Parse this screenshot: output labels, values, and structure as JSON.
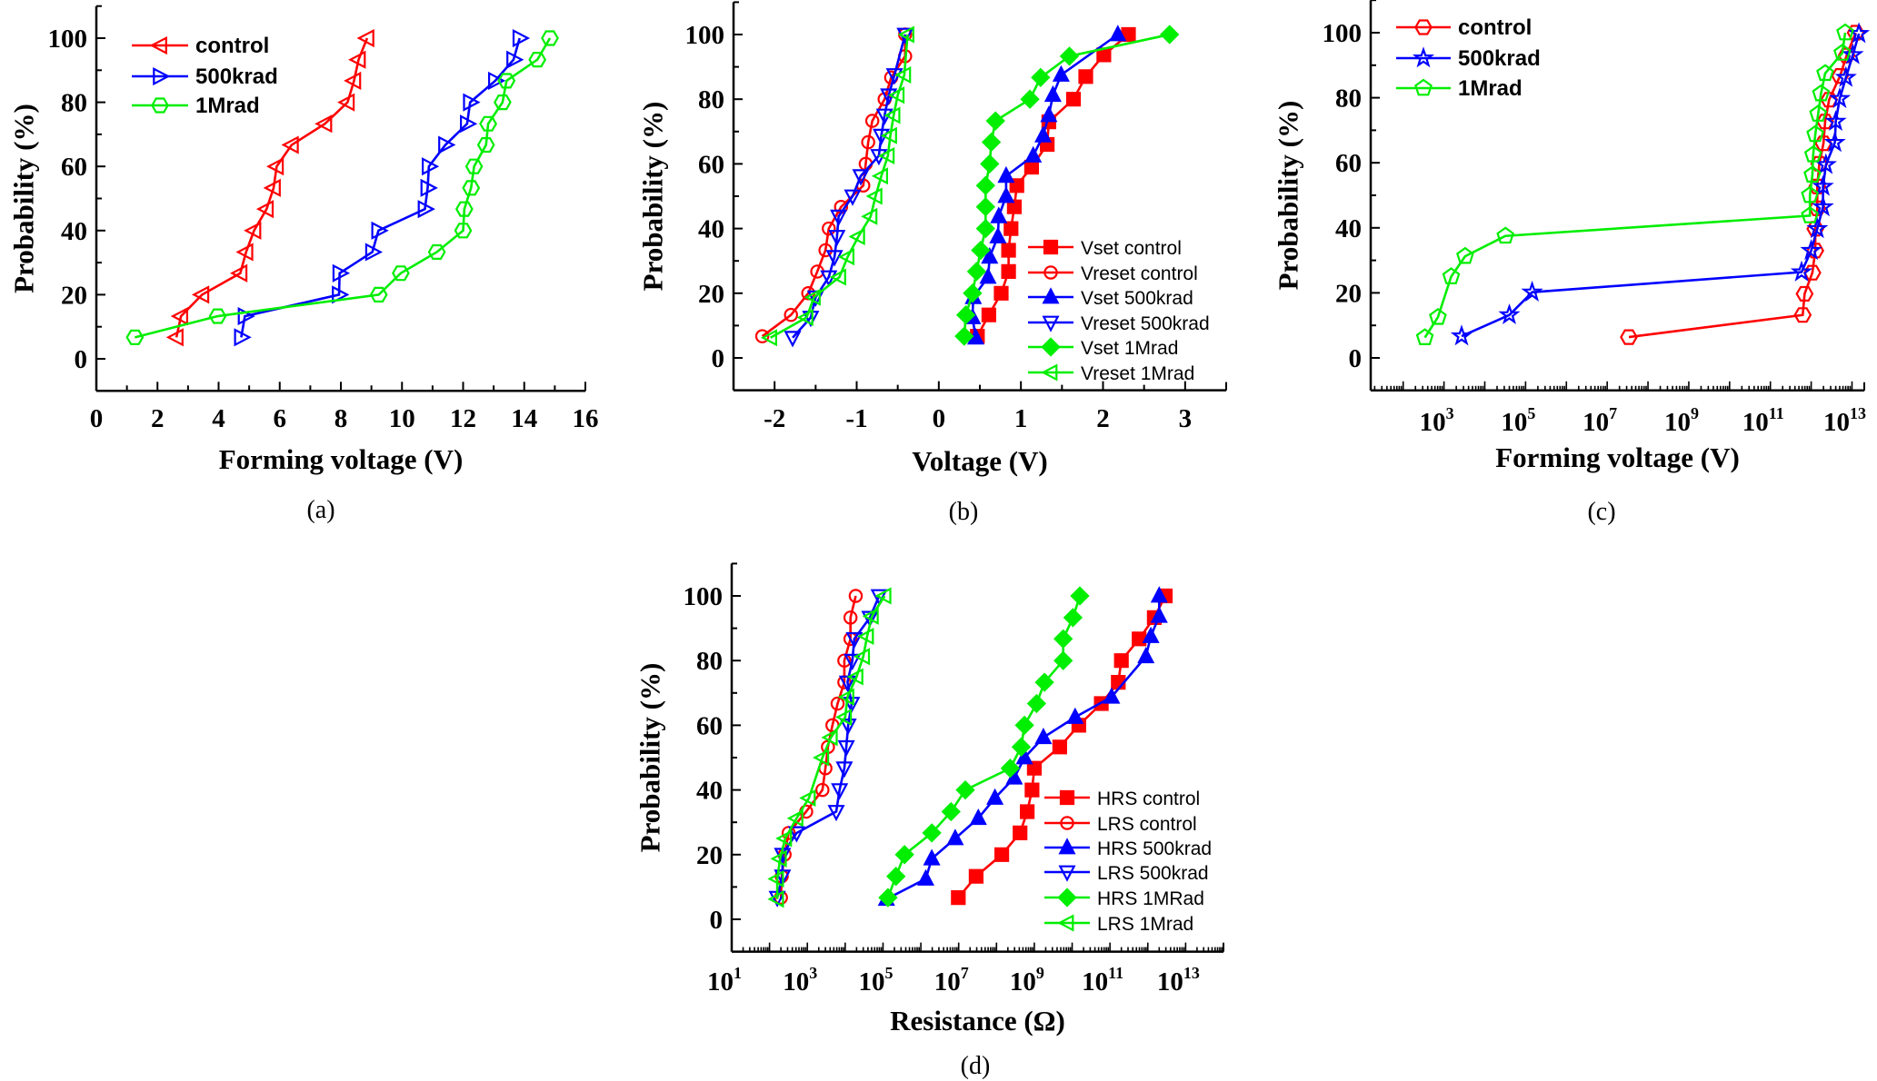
{
  "colors": {
    "red": "#ff0000",
    "blue": "#0000ff",
    "green": "#00ee00",
    "axis": "#000000"
  },
  "chart_data": [
    {
      "panel_label": "(a)",
      "type": "line",
      "xlabel": "Forming voltage (V)",
      "ylabel": "Probability (%)",
      "xscale": "linear",
      "xlim": [
        0,
        16
      ],
      "ylim": [
        -10,
        110
      ],
      "xticks": [
        "0",
        "2",
        "4",
        "6",
        "8",
        "10",
        "12",
        "14",
        "16"
      ],
      "yticks": [
        "0",
        "20",
        "40",
        "60",
        "80",
        "100"
      ],
      "legend_position": "top-left",
      "series": [
        {
          "name": "control",
          "color": "red",
          "marker": "triangle-left-open",
          "x": [
            2.62,
            2.77,
            3.46,
            4.71,
            4.9,
            5.16,
            5.57,
            5.8,
            5.9,
            6.39,
            7.48,
            8.22,
            8.43,
            8.58,
            8.86
          ],
          "y": [
            6.7,
            13.3,
            20,
            26.7,
            33.3,
            40,
            46.7,
            53.3,
            60,
            66.7,
            73.3,
            80,
            86.7,
            93.3,
            100
          ]
        },
        {
          "name": "500krad",
          "color": "blue",
          "marker": "triangle-right-open",
          "x": [
            4.74,
            4.86,
            7.94,
            7.96,
            9.03,
            9.23,
            10.75,
            10.84,
            10.88,
            11.42,
            12.13,
            12.23,
            13.05,
            13.65,
            13.85
          ],
          "y": [
            6.7,
            13.3,
            20,
            26.7,
            33.3,
            40,
            46.7,
            53.3,
            60,
            66.7,
            73.3,
            80,
            86.7,
            93.3,
            100
          ]
        },
        {
          "name": "1Mrad",
          "color": "green",
          "marker": "hexagon-open",
          "x": [
            1.26,
            3.97,
            9.24,
            9.96,
            11.14,
            12.0,
            12.04,
            12.26,
            12.36,
            12.75,
            12.82,
            13.29,
            13.42,
            14.43,
            14.84
          ],
          "y": [
            6.7,
            13.3,
            20,
            26.7,
            33.3,
            40,
            46.7,
            53.3,
            60,
            66.7,
            73.3,
            80,
            86.7,
            93.3,
            100
          ]
        }
      ]
    },
    {
      "panel_label": "(b)",
      "type": "line",
      "xlabel": "Voltage (V)",
      "ylabel": "Probability (%)",
      "xscale": "linear",
      "xlim": [
        -2.5,
        3.5
      ],
      "ylim": [
        -10,
        110
      ],
      "xticks": [
        "-2",
        "-1",
        "0",
        "1",
        "2",
        "3"
      ],
      "yticks": [
        "0",
        "20",
        "40",
        "60",
        "80",
        "100"
      ],
      "legend_position": "bottom-right",
      "series": [
        {
          "name": "Vset control",
          "color": "red",
          "marker": "square-filled",
          "x": [
            0.47,
            0.61,
            0.76,
            0.85,
            0.85,
            0.88,
            0.92,
            0.95,
            1.13,
            1.32,
            1.34,
            1.64,
            1.79,
            2.01,
            2.31
          ],
          "y": [
            6.7,
            13.3,
            20,
            26.7,
            33.3,
            40,
            46.7,
            53.3,
            59,
            66,
            73,
            80,
            87,
            93.7,
            100
          ]
        },
        {
          "name": "Vreset control",
          "color": "red",
          "marker": "circle-open",
          "x": [
            -2.15,
            -1.8,
            -1.59,
            -1.48,
            -1.38,
            -1.34,
            -1.19,
            -0.92,
            -0.89,
            -0.86,
            -0.81,
            -0.66,
            -0.58,
            -0.41,
            -0.41
          ],
          "y": [
            6.7,
            13.3,
            20,
            26.7,
            33.3,
            40,
            46.7,
            53.3,
            60,
            66.7,
            73.3,
            80,
            86.7,
            93.3,
            100
          ]
        },
        {
          "name": "Vset 500krad",
          "color": "blue",
          "marker": "triangle-up-filled",
          "x": [
            0.45,
            0.41,
            0.42,
            0.6,
            0.62,
            0.72,
            0.73,
            0.82,
            0.82,
            1.15,
            1.27,
            1.34,
            1.39,
            1.49,
            2.18
          ],
          "y": [
            6.25,
            12.5,
            18.75,
            25,
            31.25,
            37.5,
            43.75,
            50,
            56.25,
            62.5,
            68.75,
            75,
            81.25,
            87.5,
            100
          ]
        },
        {
          "name": "Vreset 500krad",
          "color": "blue",
          "marker": "triangle-down-open",
          "x": [
            -1.78,
            -1.56,
            -1.5,
            -1.34,
            -1.27,
            -1.24,
            -1.22,
            -1.05,
            -0.95,
            -0.73,
            -0.7,
            -0.66,
            -0.61,
            -0.54,
            -0.41
          ],
          "y": [
            6.25,
            12.5,
            18.75,
            25,
            31.25,
            37.5,
            43.75,
            50,
            56.25,
            62.5,
            68.75,
            75,
            81.25,
            87.5,
            100
          ]
        },
        {
          "name": "Vset 1Mrad",
          "color": "green",
          "marker": "diamond-filled",
          "x": [
            0.31,
            0.33,
            0.41,
            0.46,
            0.51,
            0.57,
            0.57,
            0.57,
            0.62,
            0.64,
            0.69,
            1.11,
            1.24,
            1.59,
            2.81
          ],
          "y": [
            6.7,
            13.3,
            20,
            26.7,
            33.3,
            40,
            46.7,
            53.3,
            60,
            66.7,
            73.3,
            80,
            86.7,
            93.3,
            100
          ]
        },
        {
          "name": "Vreset 1Mrad",
          "color": "green",
          "marker": "triangle-left-open",
          "x": [
            -2.05,
            -1.61,
            -1.52,
            -1.21,
            -1.11,
            -0.98,
            -0.83,
            -0.77,
            -0.7,
            -0.62,
            -0.59,
            -0.55,
            -0.5,
            -0.42,
            -0.38
          ],
          "y": [
            6.25,
            12.5,
            18.75,
            25,
            31.25,
            37.5,
            43.75,
            50,
            56.25,
            62.5,
            68.75,
            75,
            81.25,
            87.5,
            100
          ]
        }
      ]
    },
    {
      "panel_label": "(c)",
      "type": "line",
      "xlabel": "Forming voltage (V)",
      "ylabel": "Probability (%)",
      "xscale": "log",
      "xlim": [
        16.0,
        20000000000000.0
      ],
      "ylim": [
        -10,
        110
      ],
      "xticks": [
        {
          "base": "10",
          "exp": "3"
        },
        {
          "base": "10",
          "exp": "5"
        },
        {
          "base": "10",
          "exp": "7"
        },
        {
          "base": "10",
          "exp": "9"
        },
        {
          "base": "10",
          "exp": "11"
        },
        {
          "base": "10",
          "exp": "13"
        }
      ],
      "yticks": [
        "0",
        "20",
        "40",
        "60",
        "80",
        "100"
      ],
      "legend_position": "top-left",
      "series": [
        {
          "name": "control",
          "color": "red",
          "marker": "hexagon-open",
          "x": [
            34000000.0,
            620000000000.0,
            690000000000.0,
            1070000000000.0,
            1260000000000.0,
            1260000000000.0,
            1410000000000.0,
            1410000000000.0,
            1580000000000.0,
            2000000000000.0,
            2200000000000.0,
            2750000000000.0,
            5100000000000.0,
            7400000000000.0,
            12300000000000.0
          ],
          "y": [
            6.4,
            13.2,
            19.7,
            26.2,
            33,
            39.7,
            46,
            52.7,
            59.7,
            66,
            72.7,
            79.4,
            86.7,
            93,
            100
          ]
        },
        {
          "name": "500krad",
          "color": "blue",
          "marker": "star-open",
          "x": [
            2700.0,
            40000.0,
            145000.0,
            580000000000.0,
            1000000000000.0,
            1410000000000.0,
            1950000000000.0,
            1950000000000.0,
            2300000000000.0,
            3800000000000.0,
            4000000000000.0,
            5000000000000.0,
            7100000000000.0,
            10500000000000.0,
            14800000000000.0
          ],
          "y": [
            6.7,
            13.2,
            20.2,
            26.4,
            33,
            39.7,
            46.4,
            52.7,
            59.4,
            66.2,
            72.7,
            79.7,
            86.2,
            93.2,
            99.7
          ]
        },
        {
          "name": "1Mrad",
          "color": "green",
          "marker": "pentagon-open",
          "x": [
            340.0,
            710.0,
            1500.0,
            3300.0,
            32000.0,
            930000000000.0,
            930000000000.0,
            1070000000000.0,
            1120000000000.0,
            1260000000000.0,
            1480000000000.0,
            1740000000000.0,
            2200000000000.0,
            5800000000000.0,
            6800000000000.0
          ],
          "y": [
            6.25,
            12.5,
            25,
            31.25,
            37.5,
            43.75,
            50,
            56.25,
            62.5,
            68.75,
            75,
            81.25,
            87.5,
            93.75,
            100
          ]
        }
      ]
    },
    {
      "panel_label": "(d)",
      "type": "line",
      "xlabel": "Resistance (Ω)",
      "ylabel": "Probability (%)",
      "xscale": "log",
      "xlim": [
        10.0,
        100000000000000.0
      ],
      "ylim": [
        -10,
        110
      ],
      "xticks": [
        {
          "base": "10",
          "exp": "1"
        },
        {
          "base": "10",
          "exp": "3"
        },
        {
          "base": "10",
          "exp": "5"
        },
        {
          "base": "10",
          "exp": "7"
        },
        {
          "base": "10",
          "exp": "9"
        },
        {
          "base": "10",
          "exp": "11"
        },
        {
          "base": "10",
          "exp": "13"
        }
      ],
      "yticks": [
        "0",
        "20",
        "40",
        "60",
        "80",
        "100"
      ],
      "legend_position": "bottom-right",
      "series": [
        {
          "name": "HRS control",
          "color": "red",
          "marker": "square-filled",
          "x": [
            9800000.0,
            29000000.0,
            138000000.0,
            420000000.0,
            650000000.0,
            870000000.0,
            1000000000.0,
            4700000000.0,
            15000000000.0,
            59000000000.0,
            166000000000.0,
            200000000000.0,
            590000000000.0,
            1480000000000.0,
            2900000000000.0
          ],
          "y": [
            6.7,
            13.3,
            20,
            26.7,
            33.3,
            40,
            46.7,
            53.3,
            60,
            66.7,
            73.3,
            80,
            86.7,
            93.3,
            100
          ]
        },
        {
          "name": "LRS control",
          "color": "red",
          "marker": "circle-open",
          "x": [
            200.0,
            210.0,
            250.0,
            320.0,
            930.0,
            2500.0,
            3000.0,
            3500.0,
            4600.0,
            6300.0,
            9500.0,
            9500.0,
            13800.0,
            13800.0,
            19000.0
          ],
          "y": [
            6.7,
            13.3,
            20,
            26.7,
            33.3,
            40,
            46.7,
            53.3,
            60,
            66.7,
            73.3,
            80,
            86.7,
            93.3,
            100
          ]
        },
        {
          "name": "HRS 500krad",
          "color": "blue",
          "marker": "triangle-up-filled",
          "x": [
            123000.0,
            1350000.0,
            1950000.0,
            8100000.0,
            33000000.0,
            91000000.0,
            295000000.0,
            550000000.0,
            1740000000.0,
            12000000000.0,
            110000000000.0,
            890000000000.0,
            1200000000000.0,
            2000000000000.0,
            2000000000000.0
          ],
          "y": [
            6.25,
            12.5,
            18.75,
            25,
            31.25,
            37.5,
            43.75,
            50,
            56.25,
            62.5,
            68.75,
            81.25,
            87.5,
            93.75,
            100
          ]
        },
        {
          "name": "LRS 500krad",
          "color": "blue",
          "marker": "triangle-down-open",
          "x": [
            160.0,
            220.0,
            220.0,
            520.0,
            5800.0,
            7100.0,
            9500.0,
            10700.0,
            12000.0,
            14800.0,
            11500.0,
            15500.0,
            17400.0,
            45000.0,
            79000.0
          ],
          "y": [
            6.7,
            13.3,
            20,
            26.7,
            33.3,
            40,
            46.7,
            53.3,
            60,
            66.7,
            73.3,
            80,
            86.7,
            93.3,
            100
          ]
        },
        {
          "name": "HRS 1MRad",
          "color": "green",
          "marker": "diamond-filled",
          "x": [
            135000.0,
            220000.0,
            370000.0,
            1950000.0,
            6300000.0,
            15000000.0,
            230000000.0,
            450000000.0,
            550000000.0,
            1150000000.0,
            1860000000.0,
            5800000000.0,
            5800000000.0,
            10500000000.0,
            16000000000.0
          ],
          "y": [
            6.7,
            13.3,
            20,
            26.7,
            33.3,
            40,
            46.7,
            53.3,
            60,
            66.7,
            73.3,
            80,
            86.7,
            93.3,
            100
          ]
        },
        {
          "name": "LRS 1Mrad",
          "color": "green",
          "marker": "triangle-left-open",
          "x": [
            160.0,
            160.0,
            190.0,
            260.0,
            520.0,
            1100.0,
            2500.0,
            4200.0,
            10000.0,
            11500.0,
            20000.0,
            30000.0,
            38000.0,
            51000.0,
            110000.0
          ],
          "y": [
            6.25,
            12.5,
            18.75,
            25,
            31.25,
            37.5,
            50,
            56.25,
            62.5,
            68.75,
            75,
            81.25,
            87.5,
            93.75,
            100
          ]
        }
      ]
    }
  ]
}
